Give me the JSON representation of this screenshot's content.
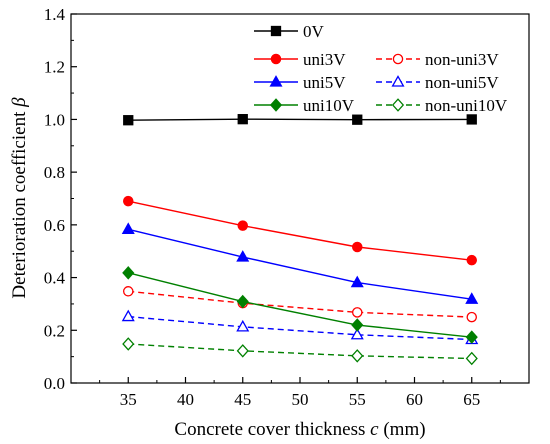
{
  "chart_data": {
    "type": "line",
    "xlabel": "Concrete cover thickness",
    "xlabel_symbol": "c",
    "xlabel_unit": "(mm)",
    "ylabel": "Deterioration coefficient",
    "ylabel_symbol": "β",
    "x": [
      35,
      45,
      55,
      65
    ],
    "xlim": [
      30,
      70
    ],
    "ylim": [
      0,
      1.4
    ],
    "xticks": [
      "35",
      "40",
      "45",
      "50",
      "55",
      "60",
      "65"
    ],
    "yticks": [
      "0.0",
      "0.2",
      "0.4",
      "0.6",
      "0.8",
      "1.0",
      "1.2",
      "1.4"
    ],
    "grid": false,
    "legend_position": "top-right",
    "series": [
      {
        "name": "0V",
        "values": [
          0.997,
          1.001,
          0.999,
          1.0
        ],
        "color": "#000000",
        "marker": "square",
        "filled": true,
        "dashed": false
      },
      {
        "name": "uni3V",
        "values": [
          0.69,
          0.597,
          0.516,
          0.466
        ],
        "color": "#ff0000",
        "marker": "circle",
        "filled": true,
        "dashed": false
      },
      {
        "name": "non-uni3V",
        "values": [
          0.348,
          0.303,
          0.268,
          0.25
        ],
        "color": "#ff0000",
        "marker": "circle",
        "filled": false,
        "dashed": true
      },
      {
        "name": "uni5V",
        "values": [
          0.583,
          0.478,
          0.381,
          0.318
        ],
        "color": "#0000ff",
        "marker": "triangle",
        "filled": true,
        "dashed": false
      },
      {
        "name": "non-uni5V",
        "values": [
          0.252,
          0.213,
          0.183,
          0.165
        ],
        "color": "#0000ff",
        "marker": "triangle",
        "filled": false,
        "dashed": true
      },
      {
        "name": "uni10V",
        "values": [
          0.418,
          0.309,
          0.22,
          0.174
        ],
        "color": "#008000",
        "marker": "diamond",
        "filled": true,
        "dashed": false
      },
      {
        "name": "non-uni10V",
        "values": [
          0.148,
          0.122,
          0.103,
          0.093
        ],
        "color": "#008000",
        "marker": "diamond",
        "filled": false,
        "dashed": true
      }
    ]
  }
}
